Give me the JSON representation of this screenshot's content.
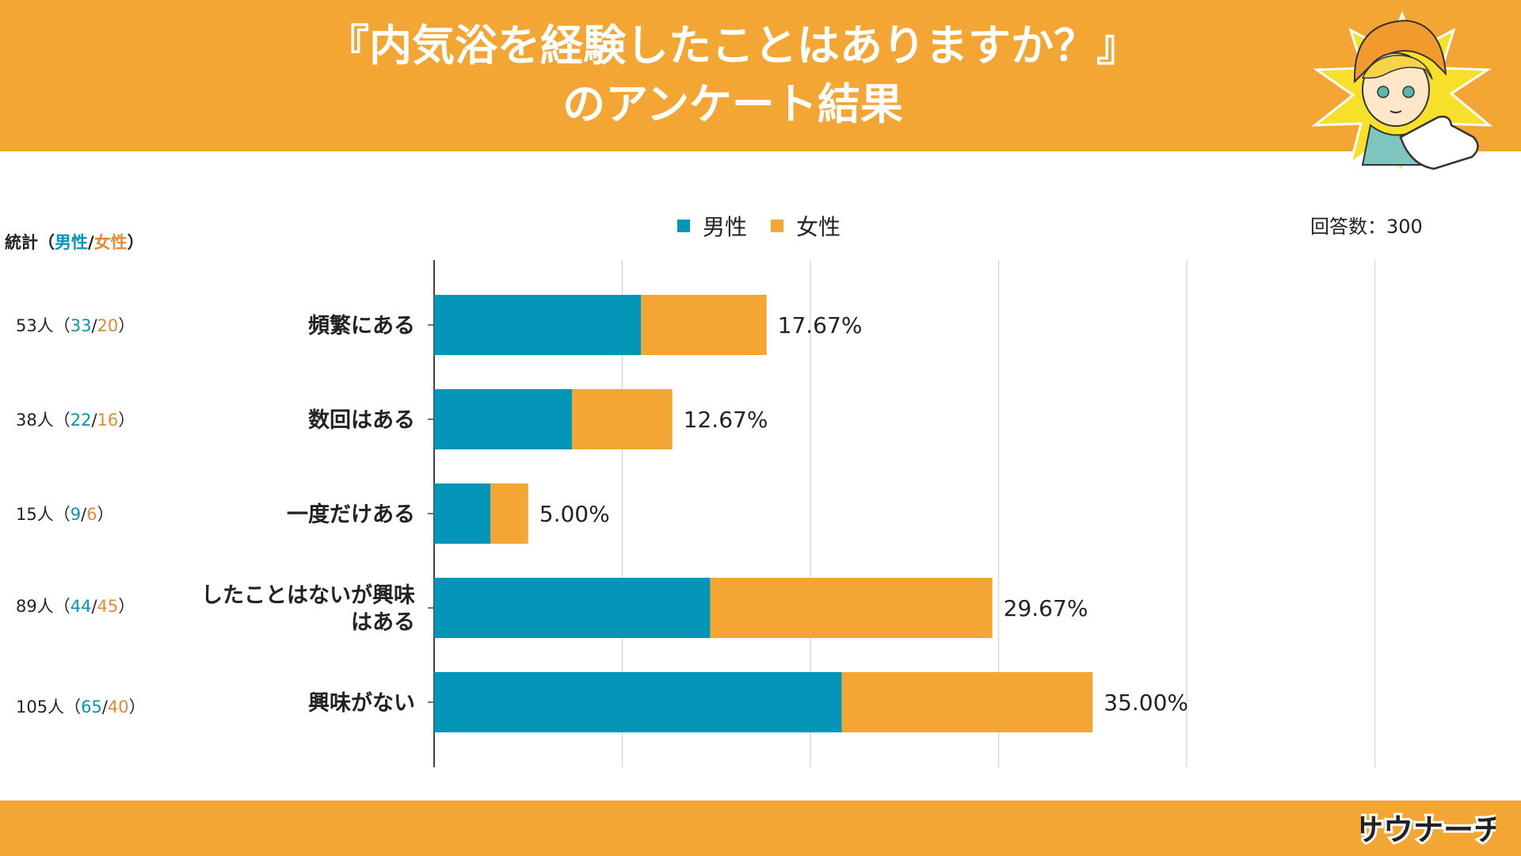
{
  "header": {
    "title_line1": "『内気浴を経験したことはありますか？』",
    "title_line2": "のアンケート結果"
  },
  "colors": {
    "banner": "#f3a633",
    "male": "#0396b8",
    "female": "#f3a633",
    "female_text": "#e88a33",
    "gridline": "#d9d9d9",
    "axis": "#444444"
  },
  "legend": {
    "male": "男性",
    "female": "女性"
  },
  "respondents": "回答数：300",
  "stats": {
    "heading_prefix": "統計（",
    "male": "男性",
    "slash": "/",
    "female": "女性",
    "heading_suffix": "）",
    "rows": [
      {
        "total": "53人",
        "male": "33",
        "female": "20"
      },
      {
        "total": "38人",
        "male": "22",
        "female": "16"
      },
      {
        "total": "15人",
        "male": "9",
        "female": "6"
      },
      {
        "total": "89人",
        "male": "44",
        "female": "45"
      },
      {
        "total": "105人",
        "male": "65",
        "female": "40"
      }
    ]
  },
  "logo_text": "サウナーチ",
  "chart_data": {
    "type": "bar",
    "orientation": "horizontal",
    "stacked": true,
    "categories": [
      "頻繁にある",
      "数回はある",
      "一度だけある",
      "したことはないが興味はある",
      "興味がない"
    ],
    "category_lines": [
      [
        "頻繁にある"
      ],
      [
        "数回はある"
      ],
      [
        "一度だけある"
      ],
      [
        "したことはないが興味",
        "はある"
      ],
      [
        "興味がない"
      ]
    ],
    "series": [
      {
        "name": "男性",
        "values": [
          11.0,
          7.33,
          3.0,
          14.67,
          21.67
        ]
      },
      {
        "name": "女性",
        "values": [
          6.67,
          5.33,
          2.0,
          15.0,
          13.33
        ]
      }
    ],
    "value_labels": [
      "17.67%",
      "12.67%",
      "5.00%",
      "29.67%",
      "35.00%"
    ],
    "xlim": [
      0,
      70
    ],
    "x_gridlines": [
      0,
      10,
      20,
      30,
      40,
      50,
      60
    ],
    "grid": true,
    "legend": "top-center"
  }
}
